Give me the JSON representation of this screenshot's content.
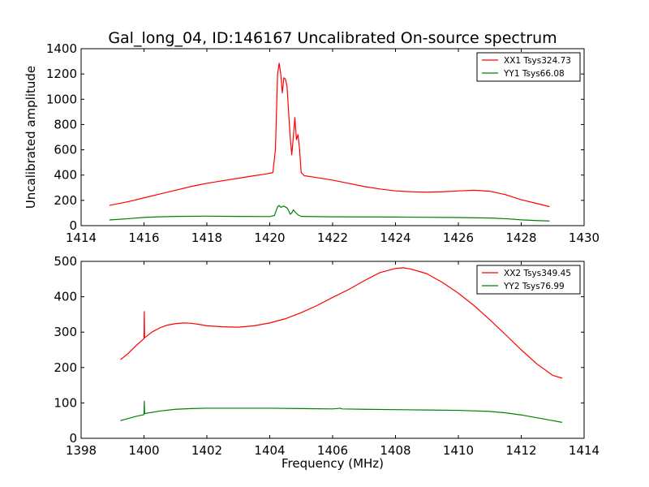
{
  "figure_title": "Gal_long_04, ID:146167 Uncalibrated On-source spectrum",
  "chart_data": [
    {
      "type": "line",
      "title": "Gal_long_04, ID:146167 Uncalibrated On-source spectrum",
      "xlabel": "",
      "ylabel": "Uncalibrated amplitude",
      "xlim": [
        1414,
        1430
      ],
      "ylim": [
        0,
        1400
      ],
      "xticks": [
        1414,
        1416,
        1418,
        1420,
        1422,
        1424,
        1426,
        1428,
        1430
      ],
      "yticks": [
        0,
        200,
        400,
        600,
        800,
        1000,
        1200,
        1400
      ],
      "grid": false,
      "legend_position": "top-right",
      "series": [
        {
          "name": "XX1 Tsys324.73",
          "color": "#ff0000",
          "points": [
            [
              1414.9,
              160
            ],
            [
              1415.5,
              190
            ],
            [
              1416.0,
              220
            ],
            [
              1416.5,
              250
            ],
            [
              1417.0,
              280
            ],
            [
              1417.5,
              310
            ],
            [
              1418.0,
              335
            ],
            [
              1418.5,
              355
            ],
            [
              1419.0,
              375
            ],
            [
              1419.5,
              395
            ],
            [
              1419.9,
              410
            ],
            [
              1420.1,
              420
            ],
            [
              1420.18,
              600
            ],
            [
              1420.25,
              1200
            ],
            [
              1420.3,
              1285
            ],
            [
              1420.35,
              1200
            ],
            [
              1420.4,
              1050
            ],
            [
              1420.45,
              1170
            ],
            [
              1420.5,
              1160
            ],
            [
              1420.55,
              1100
            ],
            [
              1420.6,
              900
            ],
            [
              1420.65,
              700
            ],
            [
              1420.7,
              560
            ],
            [
              1420.75,
              700
            ],
            [
              1420.8,
              855
            ],
            [
              1420.85,
              680
            ],
            [
              1420.9,
              720
            ],
            [
              1420.95,
              600
            ],
            [
              1421.0,
              420
            ],
            [
              1421.1,
              395
            ],
            [
              1421.5,
              380
            ],
            [
              1422.0,
              360
            ],
            [
              1422.5,
              335
            ],
            [
              1423.0,
              310
            ],
            [
              1423.5,
              290
            ],
            [
              1424.0,
              275
            ],
            [
              1424.5,
              268
            ],
            [
              1425.0,
              265
            ],
            [
              1425.5,
              268
            ],
            [
              1426.0,
              275
            ],
            [
              1426.5,
              280
            ],
            [
              1427.0,
              272
            ],
            [
              1427.5,
              245
            ],
            [
              1428.0,
              205
            ],
            [
              1428.5,
              175
            ],
            [
              1428.9,
              150
            ]
          ]
        },
        {
          "name": "YY1 Tsys66.08",
          "color": "#008000",
          "points": [
            [
              1414.9,
              45
            ],
            [
              1415.5,
              55
            ],
            [
              1416.0,
              65
            ],
            [
              1416.5,
              70
            ],
            [
              1417.0,
              73
            ],
            [
              1418.0,
              75
            ],
            [
              1419.0,
              73
            ],
            [
              1420.0,
              72
            ],
            [
              1420.15,
              80
            ],
            [
              1420.25,
              150
            ],
            [
              1420.3,
              160
            ],
            [
              1420.35,
              145
            ],
            [
              1420.45,
              155
            ],
            [
              1420.55,
              140
            ],
            [
              1420.6,
              120
            ],
            [
              1420.65,
              90
            ],
            [
              1420.7,
              100
            ],
            [
              1420.75,
              125
            ],
            [
              1420.8,
              110
            ],
            [
              1420.9,
              85
            ],
            [
              1421.0,
              73
            ],
            [
              1422.0,
              70
            ],
            [
              1424.0,
              68
            ],
            [
              1426.0,
              64
            ],
            [
              1427.0,
              60
            ],
            [
              1427.5,
              55
            ],
            [
              1428.0,
              46
            ],
            [
              1428.5,
              40
            ],
            [
              1428.9,
              37
            ]
          ]
        }
      ]
    },
    {
      "type": "line",
      "title": "",
      "xlabel": "Frequency (MHz)",
      "ylabel": "",
      "xlim": [
        1398,
        1414
      ],
      "ylim": [
        0,
        500
      ],
      "xticks": [
        1398,
        1400,
        1402,
        1404,
        1406,
        1408,
        1410,
        1412,
        1414
      ],
      "yticks": [
        0,
        100,
        200,
        300,
        400,
        500
      ],
      "grid": false,
      "legend_position": "top-right",
      "series": [
        {
          "name": "XX2 Tsys349.45",
          "color": "#ff0000",
          "points": [
            [
              1399.25,
              222
            ],
            [
              1399.5,
              240
            ],
            [
              1399.75,
              262
            ],
            [
              1400.0,
              282
            ],
            [
              1400.01,
              358
            ],
            [
              1400.02,
              284
            ],
            [
              1400.25,
              300
            ],
            [
              1400.5,
              312
            ],
            [
              1400.75,
              320
            ],
            [
              1401.0,
              324
            ],
            [
              1401.25,
              326
            ],
            [
              1401.5,
              325
            ],
            [
              1401.75,
              322
            ],
            [
              1402.0,
              318
            ],
            [
              1402.5,
              315
            ],
            [
              1403.0,
              314
            ],
            [
              1403.5,
              318
            ],
            [
              1404.0,
              326
            ],
            [
              1404.5,
              338
            ],
            [
              1405.0,
              355
            ],
            [
              1405.5,
              375
            ],
            [
              1406.0,
              398
            ],
            [
              1406.5,
              420
            ],
            [
              1407.0,
              445
            ],
            [
              1407.5,
              468
            ],
            [
              1408.0,
              480
            ],
            [
              1408.25,
              482
            ],
            [
              1408.5,
              478
            ],
            [
              1409.0,
              465
            ],
            [
              1409.5,
              440
            ],
            [
              1410.0,
              410
            ],
            [
              1410.5,
              375
            ],
            [
              1411.0,
              335
            ],
            [
              1411.5,
              293
            ],
            [
              1412.0,
              250
            ],
            [
              1412.5,
              210
            ],
            [
              1413.0,
              178
            ],
            [
              1413.3,
              170
            ]
          ]
        },
        {
          "name": "YY2 Tsys76.99",
          "color": "#008000",
          "points": [
            [
              1399.25,
              50
            ],
            [
              1399.5,
              56
            ],
            [
              1399.75,
              62
            ],
            [
              1400.0,
              67
            ],
            [
              1400.01,
              105
            ],
            [
              1400.02,
              70
            ],
            [
              1400.5,
              77
            ],
            [
              1401.0,
              82
            ],
            [
              1401.5,
              84
            ],
            [
              1402.0,
              85
            ],
            [
              1403.0,
              85
            ],
            [
              1404.0,
              85
            ],
            [
              1405.0,
              84
            ],
            [
              1406.0,
              83
            ],
            [
              1406.25,
              85
            ],
            [
              1406.3,
              83
            ],
            [
              1407.0,
              82
            ],
            [
              1408.0,
              81
            ],
            [
              1409.0,
              80
            ],
            [
              1410.0,
              79
            ],
            [
              1411.0,
              76
            ],
            [
              1411.5,
              72
            ],
            [
              1412.0,
              66
            ],
            [
              1412.5,
              58
            ],
            [
              1413.0,
              50
            ],
            [
              1413.3,
              45
            ]
          ]
        }
      ]
    }
  ]
}
